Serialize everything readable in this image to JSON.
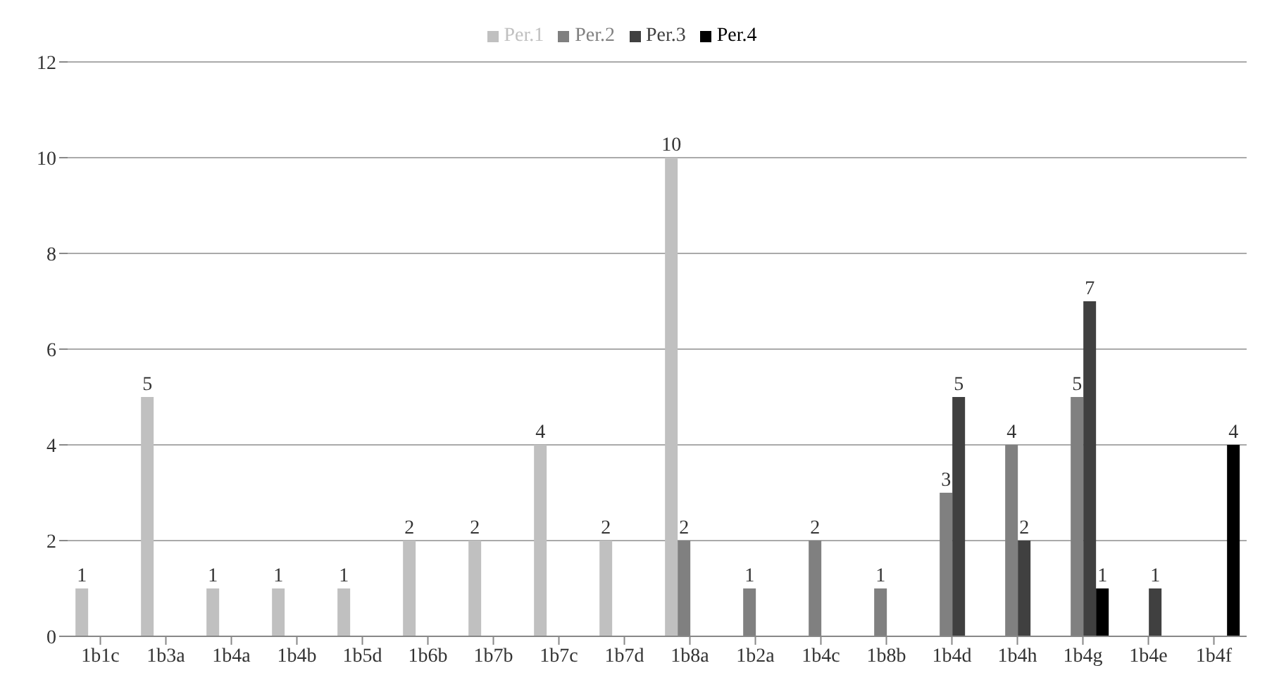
{
  "chart_data": {
    "type": "bar",
    "categories": [
      "1b1c",
      "1b3a",
      "1b4a",
      "1b4b",
      "1b5d",
      "1b6b",
      "1b7b",
      "1b7c",
      "1b7d",
      "1b8a",
      "1b2a",
      "1b4c",
      "1b8b",
      "1b4d",
      "1b4h",
      "1b4g",
      "1b4e",
      "1b4f"
    ],
    "series": [
      {
        "name": "Per.1",
        "color": "#c0c0c0",
        "values": [
          1,
          5,
          1,
          1,
          1,
          2,
          2,
          4,
          2,
          10,
          null,
          null,
          null,
          null,
          null,
          null,
          null,
          null
        ]
      },
      {
        "name": "Per.2",
        "color": "#808080",
        "values": [
          null,
          null,
          null,
          null,
          null,
          null,
          null,
          null,
          null,
          2,
          1,
          2,
          1,
          3,
          4,
          5,
          null,
          null
        ]
      },
      {
        "name": "Per.3",
        "color": "#404040",
        "values": [
          null,
          null,
          null,
          null,
          null,
          null,
          null,
          null,
          null,
          null,
          null,
          null,
          null,
          5,
          2,
          7,
          1,
          null
        ]
      },
      {
        "name": "Per.4",
        "color": "#000000",
        "values": [
          null,
          null,
          null,
          null,
          null,
          null,
          null,
          null,
          null,
          null,
          null,
          null,
          null,
          null,
          null,
          1,
          null,
          4
        ]
      }
    ],
    "ylim": [
      0,
      12
    ],
    "yticks": [
      0,
      2,
      4,
      6,
      8,
      10,
      12
    ],
    "grid": "y",
    "legend": "top",
    "data_labels": true
  }
}
